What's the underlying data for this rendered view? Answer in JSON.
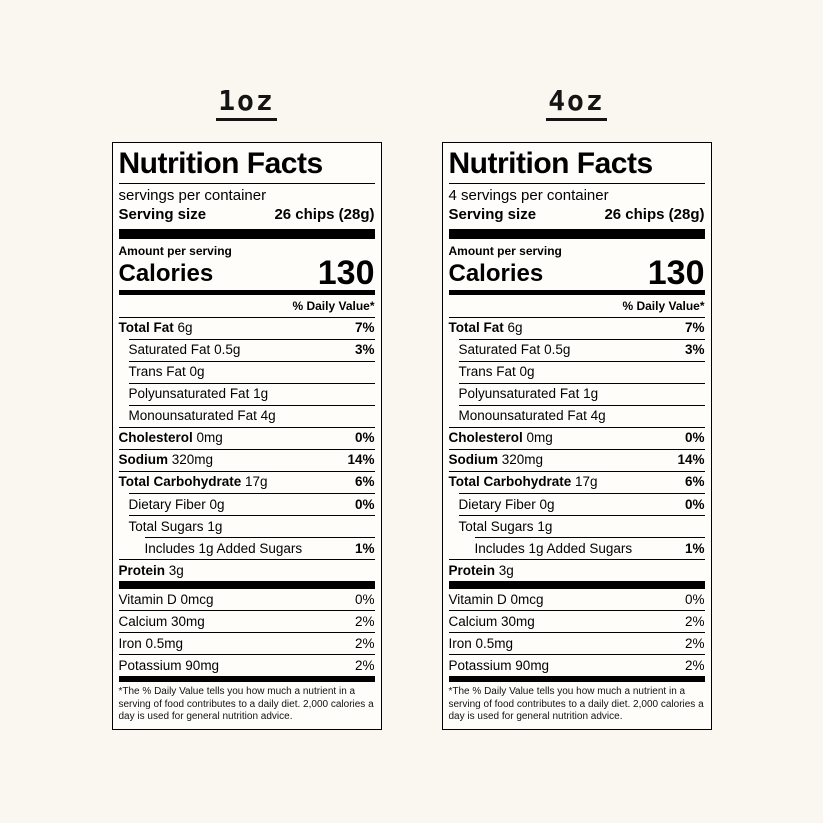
{
  "colors": {
    "page_background": "#faf7f0",
    "label_background": "#fffdfa",
    "ink": "#000000"
  },
  "labels": [
    {
      "heading": "1oz",
      "title": "Nutrition Facts",
      "servings_line": "servings per container",
      "serving_size": {
        "label": "Serving size",
        "value": "26 chips (28g)"
      },
      "amount_per_serving": "Amount per serving",
      "calories": {
        "label": "Calories",
        "value": "130"
      },
      "daily_value_header": "% Daily Value*",
      "nutrients": [
        {
          "name": "Total Fat",
          "amount": "6g",
          "dv": "7%"
        },
        {
          "name": "Saturated Fat",
          "amount": "0.5g",
          "dv": "3%"
        },
        {
          "name": "Trans Fat",
          "amount": "0g",
          "dv": ""
        },
        {
          "name": "Polyunsaturated Fat",
          "amount": "1g",
          "dv": ""
        },
        {
          "name": "Monounsaturated Fat",
          "amount": "4g",
          "dv": ""
        },
        {
          "name": "Cholesterol",
          "amount": "0mg",
          "dv": "0%"
        },
        {
          "name": "Sodium",
          "amount": "320mg",
          "dv": "14%"
        },
        {
          "name": "Total Carbohydrate",
          "amount": "17g",
          "dv": "6%"
        },
        {
          "name": "Dietary Fiber",
          "amount": "0g",
          "dv": "0%"
        },
        {
          "name": "Total Sugars",
          "amount": "1g",
          "dv": ""
        },
        {
          "name": "Includes 1g Added Sugars",
          "amount": "",
          "dv": "1%"
        },
        {
          "name": "Protein",
          "amount": "3g",
          "dv": ""
        }
      ],
      "vitamins": [
        {
          "name": "Vitamin D",
          "amount": "0mcg",
          "dv": "0%"
        },
        {
          "name": "Calcium",
          "amount": "30mg",
          "dv": "2%"
        },
        {
          "name": "Iron",
          "amount": "0.5mg",
          "dv": "2%"
        },
        {
          "name": "Potassium",
          "amount": "90mg",
          "dv": "2%"
        }
      ],
      "footnote": "*The % Daily Value tells you how much a nutrient in a serving of food contributes to a daily diet. 2,000 calories a day is used for general nutrition advice."
    },
    {
      "heading": "4oz",
      "title": "Nutrition Facts",
      "servings_line": "4 servings per container",
      "serving_size": {
        "label": "Serving size",
        "value": "26 chips (28g)"
      },
      "amount_per_serving": "Amount per serving",
      "calories": {
        "label": "Calories",
        "value": "130"
      },
      "daily_value_header": "% Daily Value*",
      "nutrients": [
        {
          "name": "Total Fat",
          "amount": "6g",
          "dv": "7%"
        },
        {
          "name": "Saturated Fat",
          "amount": "0.5g",
          "dv": "3%"
        },
        {
          "name": "Trans Fat",
          "amount": "0g",
          "dv": ""
        },
        {
          "name": "Polyunsaturated Fat",
          "amount": "1g",
          "dv": ""
        },
        {
          "name": "Monounsaturated Fat",
          "amount": "4g",
          "dv": ""
        },
        {
          "name": "Cholesterol",
          "amount": "0mg",
          "dv": "0%"
        },
        {
          "name": "Sodium",
          "amount": "320mg",
          "dv": "14%"
        },
        {
          "name": "Total Carbohydrate",
          "amount": "17g",
          "dv": "6%"
        },
        {
          "name": "Dietary Fiber",
          "amount": "0g",
          "dv": "0%"
        },
        {
          "name": "Total Sugars",
          "amount": "1g",
          "dv": ""
        },
        {
          "name": "Includes 1g Added Sugars",
          "amount": "",
          "dv": "1%"
        },
        {
          "name": "Protein",
          "amount": "3g",
          "dv": ""
        }
      ],
      "vitamins": [
        {
          "name": "Vitamin D",
          "amount": "0mcg",
          "dv": "0%"
        },
        {
          "name": "Calcium",
          "amount": "30mg",
          "dv": "2%"
        },
        {
          "name": "Iron",
          "amount": "0.5mg",
          "dv": "2%"
        },
        {
          "name": "Potassium",
          "amount": "90mg",
          "dv": "2%"
        }
      ],
      "footnote": "*The % Daily Value tells you how much a nutrient in a serving of food contributes to a daily diet. 2,000 calories a day is used for general nutrition advice."
    }
  ]
}
